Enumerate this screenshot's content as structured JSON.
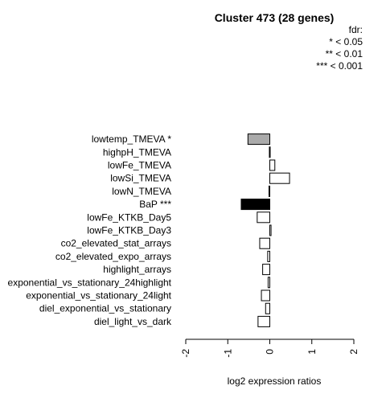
{
  "chart_data": {
    "type": "bar",
    "orientation": "horizontal",
    "title": "Cluster 473 (28 genes)",
    "xlabel": "log2 expression ratios",
    "xlim": [
      -2,
      2
    ],
    "xticks": [
      "-2",
      "-1",
      "0",
      "1",
      "2"
    ],
    "legend": {
      "placement": "top-right",
      "lines": [
        "fdr:",
        "* < 0.05",
        "** < 0.01",
        "*** < 0.001"
      ]
    },
    "categories": [
      "lowtemp_TMEVA *",
      "highpH_TMEVA",
      "lowFe_TMEVA",
      "lowSi_TMEVA",
      "lowN_TMEVA",
      "BaP ***",
      "lowFe_KTKB_Day5",
      "lowFe_KTKB_Day3",
      "co2_elevated_stat_arrays",
      "co2_elevated_expo_arrays",
      "highlight_arrays",
      "exponential_vs_stationary_24highlight",
      "exponential_vs_stationary_24light",
      "diel_exponential_vs_stationary",
      "diel_light_vs_dark"
    ],
    "values": [
      -0.52,
      -0.01,
      0.12,
      0.47,
      -0.02,
      -0.68,
      -0.3,
      0.03,
      -0.24,
      -0.05,
      -0.17,
      -0.04,
      -0.2,
      -0.1,
      -0.28
    ],
    "fills": [
      "#aaaaaa",
      "#ffffff",
      "#ffffff",
      "#ffffff",
      "#ffffff",
      "#000000",
      "#ffffff",
      "#ffffff",
      "#ffffff",
      "#ffffff",
      "#ffffff",
      "#ffffff",
      "#ffffff",
      "#ffffff",
      "#ffffff"
    ]
  }
}
